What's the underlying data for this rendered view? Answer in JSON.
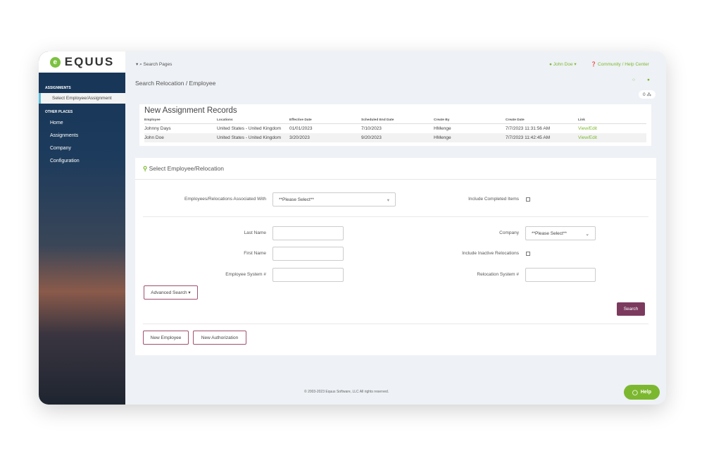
{
  "brand": {
    "name": "EQUUS"
  },
  "sidebar": {
    "section1": "ASSIGNMENTS",
    "selected": "Select Employee/Assignment",
    "section2": "OTHER PLACES",
    "items": [
      {
        "label": "Home"
      },
      {
        "label": "Assignments"
      },
      {
        "label": "Company"
      },
      {
        "label": "Configuration"
      }
    ]
  },
  "header": {
    "search": "Search Pages",
    "user": "John Doe",
    "help": "Community / Help Center",
    "badge_count": "0"
  },
  "page": {
    "title": "Search Relocation / Employee"
  },
  "records": {
    "title": "New Assignment Records",
    "columns": [
      "Employee",
      "Locations",
      "Effective Date",
      "Scheduled End Date",
      "Create By",
      "Create Date",
      "Link"
    ],
    "rows": [
      [
        "Johnny Days",
        "United States - United Kingdom",
        "01/01/2023",
        "7/10/2023",
        "HMenge",
        "7/7/2023 11:31:56 AM",
        "View/Edit"
      ],
      [
        "John Doe",
        "United States - United Kingdom",
        "3/20/2023",
        "9/20/2023",
        "HMenge",
        "7/7/2023 11:42:45 AM",
        "View/Edit"
      ]
    ]
  },
  "form": {
    "title": "Select Employee/Relocation",
    "assoc_label": "Employees/Relocations Associated With",
    "assoc_value": "**Please Select**",
    "completed_label": "Include Completed Items",
    "last_name": "Last Name",
    "first_name": "First Name",
    "emp_sys": "Employee System #",
    "company_label": "Company",
    "company_value": "**Please Select**",
    "inactive_label": "Include Inactive Relocations",
    "reloc_sys": "Relocation System #",
    "advanced": "Advanced Search ▾",
    "search": "Search",
    "new_employee": "New Employee",
    "new_authorization": "New Authorization"
  },
  "footer": {
    "copyright": "© 2003-2023 Equus Software, LLC All rights reserved.",
    "help": "Help"
  },
  "colors": {
    "accent": "#7cb82f",
    "button": "#7b3a5e",
    "sidebar": "#163456"
  }
}
